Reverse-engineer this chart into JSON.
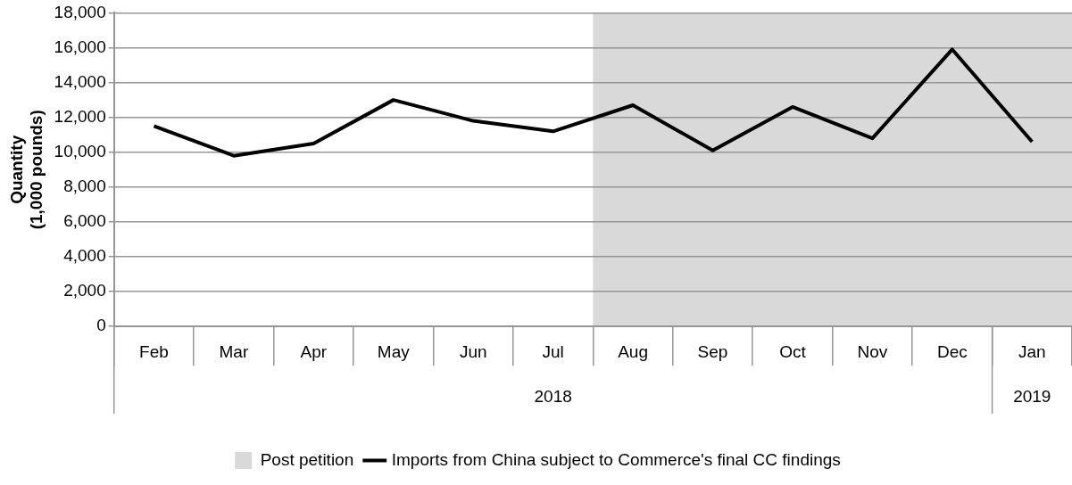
{
  "chart_data": {
    "type": "line",
    "ylabel": "Quantity\n(1,000 pounds)",
    "categories": [
      "Feb",
      "Mar",
      "Apr",
      "May",
      "Jun",
      "Jul",
      "Aug",
      "Sep",
      "Oct",
      "Nov",
      "Dec",
      "Jan"
    ],
    "annotations": [
      "2018",
      "2019"
    ],
    "series": [
      {
        "name": "Imports from China subject to Commerce's final CC findings",
        "color": "#000000",
        "values": [
          11500,
          9800,
          10500,
          13000,
          11800,
          11200,
          12700,
          10100,
          12600,
          10800,
          15900,
          10600
        ]
      }
    ],
    "ylim": [
      0,
      18000
    ],
    "yticks": [
      0,
      {
        "value": 2000,
        "label": "2,000"
      },
      {
        "value": 4000,
        "label": "4,000"
      },
      {
        "value": 6000,
        "label": "6,000"
      },
      {
        "value": 8000,
        "label": "8,000"
      },
      {
        "value": 10000,
        "label": "10,000"
      },
      {
        "value": 12000,
        "label": "12,000"
      },
      {
        "value": 14000,
        "label": "14,000"
      },
      {
        "value": 16000,
        "label": "16,000"
      },
      {
        "value": 18000,
        "label": "18,000"
      }
    ],
    "bands": [
      {
        "axis": "x",
        "from": "Aug",
        "to": "Jan",
        "label": "Post petition",
        "color": "#d9d9d9"
      }
    ],
    "grid": "y",
    "legend": "bottom",
    "marker": "none",
    "line_style": "solid"
  }
}
